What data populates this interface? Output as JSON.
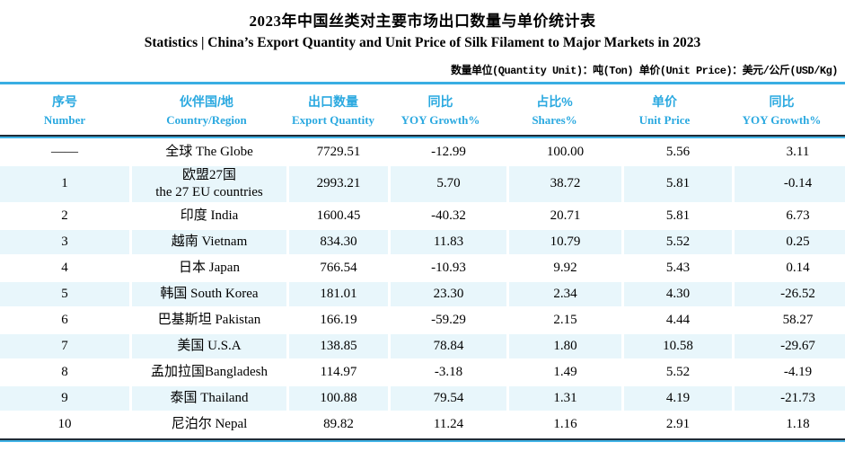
{
  "header": {
    "title_zh": "2023年中国丝类对主要市场出口数量与单价统计表",
    "title_en": "Statistics | China’s Export Quantity and Unit Price of Silk Filament to Major Markets in 2023",
    "unit_note": "数量单位(Quantity Unit)：吨(Ton) 单价(Unit Price)：美元/公斤(USD/Kg)"
  },
  "colors": {
    "accent_cyan": "#2BA9E0",
    "rule_cyan": "#39AEE3",
    "rule_dark": "#1E2B36",
    "row_highlight": "#E8F6FB"
  },
  "table": {
    "columns": [
      {
        "zh": "序号",
        "en": "Number"
      },
      {
        "zh": "伙伴国/地",
        "en": "Country/Region"
      },
      {
        "zh": "出口数量",
        "en": "Export Quantity"
      },
      {
        "zh": "同比",
        "en": "YOY Growth%"
      },
      {
        "zh": "占比%",
        "en": "Shares%"
      },
      {
        "zh": "单价",
        "en": "Unit Price"
      },
      {
        "zh": "同比",
        "en": "YOY Growth%"
      }
    ],
    "fields": [
      "num",
      "country",
      "qty",
      "yoy",
      "share",
      "price",
      "price_yoy"
    ],
    "rows": [
      {
        "num": "——",
        "country": "全球 The Globe",
        "qty": "7729.51",
        "yoy": "-12.99",
        "share": "100.00",
        "price": "5.56",
        "price_yoy": "3.11",
        "highlight": false
      },
      {
        "num": "1",
        "country": "欧盟27国\nthe 27 EU countries",
        "qty": "2993.21",
        "yoy": "5.70",
        "share": "38.72",
        "price": "5.81",
        "price_yoy": "-0.14",
        "highlight": true
      },
      {
        "num": "2",
        "country": "印度 India",
        "qty": "1600.45",
        "yoy": "-40.32",
        "share": "20.71",
        "price": "5.81",
        "price_yoy": "6.73",
        "highlight": false
      },
      {
        "num": "3",
        "country": "越南 Vietnam",
        "qty": "834.30",
        "yoy": "11.83",
        "share": "10.79",
        "price": "5.52",
        "price_yoy": "0.25",
        "highlight": true
      },
      {
        "num": "4",
        "country": "日本 Japan",
        "qty": "766.54",
        "yoy": "-10.93",
        "share": "9.92",
        "price": "5.43",
        "price_yoy": "0.14",
        "highlight": false
      },
      {
        "num": "5",
        "country": "韩国 South Korea",
        "qty": "181.01",
        "yoy": "23.30",
        "share": "2.34",
        "price": "4.30",
        "price_yoy": "-26.52",
        "highlight": true
      },
      {
        "num": "6",
        "country": "巴基斯坦 Pakistan",
        "qty": "166.19",
        "yoy": "-59.29",
        "share": "2.15",
        "price": "4.44",
        "price_yoy": "58.27",
        "highlight": false
      },
      {
        "num": "7",
        "country": "美国 U.S.A",
        "qty": "138.85",
        "yoy": "78.84",
        "share": "1.80",
        "price": "10.58",
        "price_yoy": "-29.67",
        "highlight": true
      },
      {
        "num": "8",
        "country": "孟加拉国Bangladesh",
        "qty": "114.97",
        "yoy": "-3.18",
        "share": "1.49",
        "price": "5.52",
        "price_yoy": "-4.19",
        "highlight": false
      },
      {
        "num": "9",
        "country": "泰国 Thailand",
        "qty": "100.88",
        "yoy": "79.54",
        "share": "1.31",
        "price": "4.19",
        "price_yoy": "-21.73",
        "highlight": true
      },
      {
        "num": "10",
        "country": "尼泊尔 Nepal",
        "qty": "89.82",
        "yoy": "11.24",
        "share": "1.16",
        "price": "2.91",
        "price_yoy": "1.18",
        "highlight": false
      }
    ]
  }
}
